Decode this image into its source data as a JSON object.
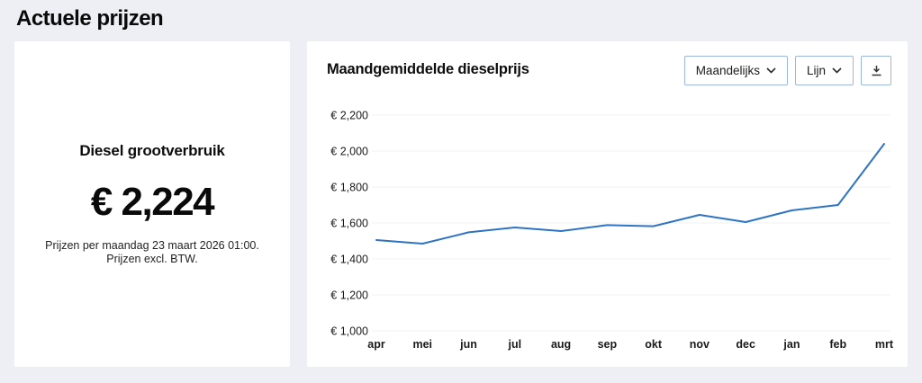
{
  "page": {
    "title": "Actuele prijzen"
  },
  "price_card": {
    "title": "Diesel grootverbruik",
    "price": "€ 2,224",
    "note_line1": "Prijzen per maandag 23 maart 2026 01:00.",
    "note_line2": "Prijzen excl. BTW."
  },
  "chart_card": {
    "title": "Maandgemiddelde dieselprijs",
    "controls": {
      "interval_dropdown_label": "Maandelijks",
      "type_dropdown_label": "Lijn",
      "download_button_icon": "download-icon"
    }
  },
  "chart_data": {
    "type": "line",
    "title": "Maandgemiddelde dieselprijs",
    "categories": [
      "apr",
      "mei",
      "jun",
      "jul",
      "aug",
      "sep",
      "okt",
      "nov",
      "dec",
      "jan",
      "feb",
      "mrt"
    ],
    "values": [
      1505,
      1485,
      1548,
      1575,
      1555,
      1588,
      1582,
      1645,
      1605,
      1670,
      1700,
      2040
    ],
    "xlabel": "",
    "ylabel": "",
    "ylim": [
      1000,
      2200
    ],
    "y_ticks": [
      1000,
      1200,
      1400,
      1600,
      1800,
      2000,
      2200
    ],
    "y_tick_labels": [
      "€ 1,000",
      "€ 1,200",
      "€ 1,400",
      "€ 1,600",
      "€ 1,800",
      "€ 2,000",
      "€ 2,200"
    ],
    "grid": true,
    "legend": "none",
    "line_color": "#2e74c4",
    "grid_color": "#f0f0f1",
    "axis_text_color": "#1a1a1a"
  }
}
